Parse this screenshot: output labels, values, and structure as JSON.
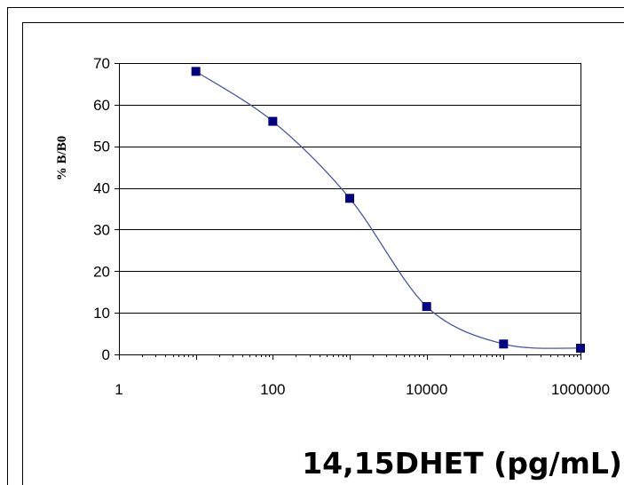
{
  "chart_data": {
    "type": "scatter",
    "title": "",
    "xlabel": "14,15DHET (pg/mL)",
    "ylabel": "% B/B0",
    "x_scale": "log",
    "xlim": [
      1,
      1000000
    ],
    "ylim": [
      0,
      70
    ],
    "x_ticks": [
      "1",
      "100",
      "10000",
      "1000000"
    ],
    "y_ticks": [
      "0",
      "10",
      "20",
      "30",
      "40",
      "50",
      "60",
      "70"
    ],
    "grid": "horizontal",
    "legend": "none",
    "series": [
      {
        "x": [
          10,
          100,
          1000,
          10000,
          100000,
          1000000
        ],
        "y": [
          68,
          56,
          37.5,
          11.5,
          2.5,
          1.5
        ],
        "color": "#000080",
        "line_color": "#4a58a8",
        "marker": "square"
      }
    ]
  }
}
